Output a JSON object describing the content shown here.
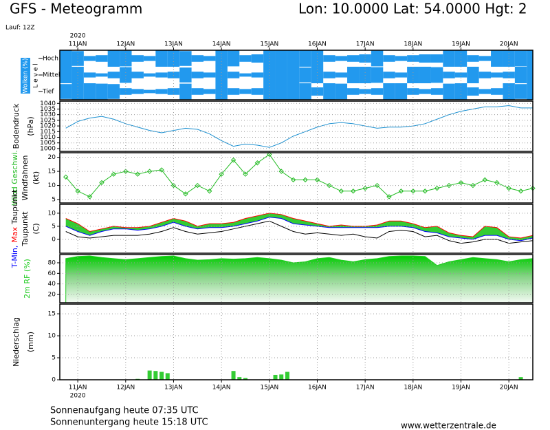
{
  "header": {
    "title": "GFS - Meteogramm",
    "location": "Lon: 10.0000 Lat: 54.0000 Hgt: 2",
    "run": "Lauf: 12Z"
  },
  "footer": {
    "sunrise": "Sonnenaufgang heute 07:35 UTC",
    "sunset": "Sonnenuntergang heute 15:18 UTC",
    "site": "www.wetterzentrale.de"
  },
  "chart_data": [
    {
      "type": "cloud",
      "ylabel": "Wolken (%)",
      "ylabel2": "L e v e l",
      "year": "2020",
      "xlim": [
        -0.375,
        9.5
      ],
      "xticks": [
        {
          "value": 0,
          "label": "11JAN"
        },
        {
          "value": 1,
          "label": "12JAN"
        },
        {
          "value": 2,
          "label": "13JAN"
        },
        {
          "value": 3,
          "label": "14JAN"
        },
        {
          "value": 4,
          "label": "15JAN"
        },
        {
          "value": 5,
          "label": "16JAN"
        },
        {
          "value": 6,
          "label": "17JAN"
        },
        {
          "value": 7,
          "label": "18JAN"
        },
        {
          "value": 8,
          "label": "19JAN"
        },
        {
          "value": 9,
          "label": "20JAN"
        }
      ],
      "x": [
        -0.25,
        0,
        0.25,
        0.5,
        0.75,
        1,
        1.25,
        1.5,
        1.75,
        2,
        2.25,
        2.5,
        2.75,
        3,
        3.25,
        3.5,
        3.75,
        4,
        4.25,
        4.5,
        4.75,
        5,
        5.25,
        5.5,
        5.75,
        6,
        6.25,
        6.5,
        6.75,
        7,
        7.25,
        7.5,
        7.75,
        8,
        8.25,
        8.5,
        8.75,
        9,
        9.25,
        9.5
      ],
      "color": "#2299ee",
      "series": [
        {
          "name": "Hoch",
          "values": [
            100,
            90,
            30,
            40,
            100,
            95,
            40,
            30,
            100,
            100,
            90,
            40,
            30,
            100,
            95,
            40,
            50,
            100,
            100,
            100,
            100,
            100,
            40,
            30,
            40,
            50,
            95,
            40,
            30,
            40,
            50,
            50,
            100,
            100,
            40,
            30,
            100,
            100,
            95,
            100
          ]
        },
        {
          "name": "Mittel",
          "values": [
            100,
            100,
            30,
            20,
            40,
            95,
            40,
            20,
            30,
            40,
            90,
            40,
            30,
            100,
            40,
            20,
            30,
            100,
            100,
            100,
            90,
            100,
            40,
            30,
            100,
            100,
            95,
            40,
            30,
            100,
            100,
            95,
            40,
            30,
            100,
            40,
            30,
            40,
            100,
            100
          ]
        },
        {
          "name": "Tief",
          "values": [
            90,
            100,
            100,
            95,
            90,
            40,
            30,
            20,
            30,
            40,
            95,
            40,
            30,
            100,
            40,
            30,
            40,
            100,
            100,
            100,
            100,
            50,
            100,
            95,
            40,
            30,
            40,
            100,
            100,
            40,
            30,
            40,
            95,
            100,
            50,
            30,
            40,
            100,
            90,
            100
          ]
        }
      ]
    },
    {
      "type": "line",
      "ylabel": [
        "Bodendruck",
        "(hPa)"
      ],
      "xlim": [
        -0.375,
        9.5
      ],
      "xticks": [
        {
          "value": 0,
          "label": "11JAN"
        },
        {
          "value": 1,
          "label": "12JAN"
        },
        {
          "value": 2,
          "label": "13JAN"
        },
        {
          "value": 3,
          "label": "14JAN"
        },
        {
          "value": 4,
          "label": "15JAN"
        },
        {
          "value": 5,
          "label": "16JAN"
        },
        {
          "value": 6,
          "label": "17JAN"
        },
        {
          "value": 7,
          "label": "18JAN"
        },
        {
          "value": 8,
          "label": "19JAN"
        },
        {
          "value": 9,
          "label": "20JAN"
        }
      ],
      "ylim": [
        997.5,
        1042
      ],
      "yticks": [
        1000,
        1005,
        1010,
        1015,
        1020,
        1025,
        1030,
        1035,
        1040
      ],
      "x": [
        -0.25,
        0,
        0.25,
        0.5,
        0.75,
        1,
        1.25,
        1.5,
        1.75,
        2,
        2.25,
        2.5,
        2.75,
        3,
        3.25,
        3.5,
        3.75,
        4,
        4.25,
        4.5,
        4.75,
        5,
        5.25,
        5.5,
        5.75,
        6,
        6.25,
        6.5,
        6.75,
        7,
        7.25,
        7.5,
        7.75,
        8,
        8.25,
        8.5,
        8.75,
        9,
        9.25,
        9.5
      ],
      "series": [
        {
          "color": "#1a8fd0",
          "values": [
            1018,
            1024,
            1027,
            1028.5,
            1026,
            1022,
            1019,
            1016,
            1014,
            1016,
            1018,
            1017,
            1013,
            1007,
            1002,
            1004,
            1003,
            1001,
            1005,
            1011,
            1015,
            1019,
            1022,
            1023,
            1022,
            1020,
            1018,
            1019,
            1019,
            1020,
            1022,
            1026,
            1030,
            1033,
            1035,
            1037,
            1037,
            1038,
            1036,
            1036
          ]
        }
      ]
    },
    {
      "type": "line",
      "label_series": true,
      "markers": "diamond",
      "ylabel": [
        "Windfahnen",
        "(kt)"
      ],
      "xlim": [
        -0.375,
        9.5
      ],
      "xticks": [
        {
          "value": 0,
          "label": "11JAN"
        },
        {
          "value": 1,
          "label": "12JAN"
        },
        {
          "value": 2,
          "label": "13JAN"
        },
        {
          "value": 3,
          "label": "14JAN"
        },
        {
          "value": 4,
          "label": "15JAN"
        },
        {
          "value": 5,
          "label": "16JAN"
        },
        {
          "value": 6,
          "label": "17JAN"
        },
        {
          "value": 7,
          "label": "18JAN"
        },
        {
          "value": 8,
          "label": "19JAN"
        },
        {
          "value": 9,
          "label": "20JAN"
        }
      ],
      "ylim": [
        3.8,
        21.6
      ],
      "yticks": [
        5,
        10,
        15,
        20
      ],
      "x": [
        -0.25,
        0,
        0.25,
        0.5,
        0.75,
        1,
        1.25,
        1.5,
        1.75,
        2,
        2.25,
        2.5,
        2.75,
        3,
        3.25,
        3.5,
        3.75,
        4,
        4.25,
        4.5,
        4.75,
        5,
        5.25,
        5.5,
        5.75,
        6,
        6.25,
        6.5,
        6.75,
        7,
        7.25,
        7.5,
        7.75,
        8,
        8.25,
        8.5,
        8.75,
        9,
        9.25,
        9.5
      ],
      "series": [
        {
          "name": "Wind Geschwi.",
          "color": "#22bb22",
          "values": [
            13,
            8,
            6,
            11,
            14,
            15,
            14,
            15,
            15.5,
            10,
            7,
            10,
            8,
            14,
            19,
            14,
            18,
            21,
            15,
            12,
            12,
            12,
            10,
            8,
            8,
            9,
            10,
            6,
            8,
            8,
            8,
            9,
            10,
            11,
            10,
            12,
            11,
            9,
            8,
            9
          ]
        }
      ]
    },
    {
      "type": "line",
      "label_series": true,
      "fill_between": [
        0,
        1
      ],
      "fill_color": "#33cc33",
      "ylabel": [
        "Taupunkt",
        "(C)"
      ],
      "xlim": [
        -0.375,
        9.5
      ],
      "xticks": [
        {
          "value": 0,
          "label": "11JAN"
        },
        {
          "value": 1,
          "label": "12JAN"
        },
        {
          "value": 2,
          "label": "13JAN"
        },
        {
          "value": 3,
          "label": "14JAN"
        },
        {
          "value": 4,
          "label": "15JAN"
        },
        {
          "value": 5,
          "label": "16JAN"
        },
        {
          "value": 6,
          "label": "17JAN"
        },
        {
          "value": 7,
          "label": "18JAN"
        },
        {
          "value": 8,
          "label": "19JAN"
        },
        {
          "value": 9,
          "label": "20JAN"
        }
      ],
      "ylim": [
        -5.3,
        13.4
      ],
      "yticks": [
        0,
        5,
        10
      ],
      "x": [
        -0.25,
        0,
        0.25,
        0.5,
        0.75,
        1,
        1.25,
        1.5,
        1.75,
        2,
        2.25,
        2.5,
        2.75,
        3,
        3.25,
        3.5,
        3.75,
        4,
        4.25,
        4.5,
        4.75,
        5,
        5.25,
        5.5,
        5.75,
        6,
        6.25,
        6.5,
        6.75,
        7,
        7.25,
        7.5,
        7.75,
        8,
        8.25,
        8.5,
        8.75,
        9,
        9.25,
        9.5
      ],
      "series": [
        {
          "name": "T-Min,",
          "color": "#0000ff",
          "values": [
            5,
            3,
            1.5,
            3,
            4,
            4,
            3.5,
            4,
            5,
            6.5,
            5,
            4,
            4.5,
            4.5,
            5,
            6,
            7,
            8.5,
            8,
            6,
            5.5,
            5,
            4.5,
            4.5,
            4.5,
            4.5,
            4.5,
            5,
            5,
            4.5,
            3,
            2.5,
            1,
            0.5,
            0,
            1.5,
            1.5,
            0,
            -0.5,
            0.5
          ]
        },
        {
          "name": "Max",
          "color": "#ff0000",
          "values": [
            8,
            6,
            3,
            4,
            5,
            4.5,
            4.5,
            5,
            6.5,
            8,
            7,
            5,
            6,
            6,
            6.5,
            8,
            9,
            10,
            9.5,
            8,
            7,
            6,
            5,
            5.5,
            5,
            5,
            5.5,
            7,
            7,
            6,
            4.5,
            5,
            2.5,
            1.5,
            1,
            5,
            4.5,
            1,
            0.5,
            1.5
          ]
        },
        {
          "name": "Taupunkt",
          "color": "#000000",
          "values": [
            3,
            1,
            0.5,
            1,
            1.5,
            1.5,
            1.5,
            2,
            3,
            4.5,
            3,
            2,
            2.5,
            3,
            4,
            5,
            6,
            7,
            5,
            3,
            2,
            2.5,
            2,
            1.5,
            2,
            1,
            0.5,
            3,
            3.5,
            3,
            1,
            1.5,
            -0.5,
            -1.5,
            -1,
            0,
            0,
            -1.5,
            -1,
            -0.5
          ]
        }
      ]
    },
    {
      "type": "area",
      "label_series": true,
      "ylabel": [],
      "xlim": [
        -0.375,
        9.5
      ],
      "xticks": [
        {
          "value": 0,
          "label": "11JAN"
        },
        {
          "value": 1,
          "label": "12JAN"
        },
        {
          "value": 2,
          "label": "13JAN"
        },
        {
          "value": 3,
          "label": "14JAN"
        },
        {
          "value": 4,
          "label": "15JAN"
        },
        {
          "value": 5,
          "label": "16JAN"
        },
        {
          "value": 6,
          "label": "17JAN"
        },
        {
          "value": 7,
          "label": "18JAN"
        },
        {
          "value": 8,
          "label": "19JAN"
        },
        {
          "value": 9,
          "label": "20JAN"
        }
      ],
      "ylim": [
        4.4,
        95.6
      ],
      "yticks": [
        20,
        40,
        60,
        80
      ],
      "x": [
        -0.25,
        0,
        0.25,
        0.5,
        0.75,
        1,
        1.25,
        1.5,
        1.75,
        2,
        2.25,
        2.5,
        2.75,
        3,
        3.25,
        3.5,
        3.75,
        4,
        4.25,
        4.5,
        4.75,
        5,
        5.25,
        5.5,
        5.75,
        6,
        6.25,
        6.5,
        6.75,
        7,
        7.25,
        7.5,
        7.75,
        8,
        8.25,
        8.5,
        8.75,
        9,
        9.25,
        9.5
      ],
      "series": [
        {
          "name": "2m RF (%)",
          "color": "#22cc22",
          "values": [
            88,
            92,
            93,
            90,
            88,
            86,
            88,
            90,
            92,
            93,
            88,
            85,
            86,
            88,
            87,
            88,
            90,
            88,
            85,
            80,
            82,
            88,
            90,
            85,
            82,
            86,
            88,
            92,
            93,
            93,
            92,
            75,
            82,
            86,
            90,
            88,
            86,
            82,
            86,
            88
          ]
        }
      ]
    },
    {
      "type": "bar",
      "ylabel": [
        "Niederschlag",
        "(mm)"
      ],
      "year": "2020",
      "xlim": [
        -0.375,
        9.5
      ],
      "xticks": [
        {
          "value": 0,
          "label": "11JAN"
        },
        {
          "value": 1,
          "label": "12JAN"
        },
        {
          "value": 2,
          "label": "13JAN"
        },
        {
          "value": 3,
          "label": "14JAN"
        },
        {
          "value": 4,
          "label": "15JAN"
        },
        {
          "value": 5,
          "label": "16JAN"
        },
        {
          "value": 6,
          "label": "17JAN"
        },
        {
          "value": 7,
          "label": "18JAN"
        },
        {
          "value": 8,
          "label": "19JAN"
        },
        {
          "value": 9,
          "label": "20JAN"
        }
      ],
      "ylim": [
        0,
        17.2
      ],
      "yticks": [
        0,
        5,
        10,
        15
      ],
      "x": [
        1.25,
        1.5,
        1.625,
        1.75,
        1.875,
        3.25,
        3.375,
        3.5,
        4.125,
        4.25,
        4.375,
        9.25
      ],
      "series": [
        {
          "color": "#33cc33",
          "values": [
            0.2,
            2.1,
            2.0,
            1.8,
            1.5,
            2.0,
            0.6,
            0.4,
            1.1,
            1.2,
            1.8,
            0.6
          ]
        }
      ]
    }
  ]
}
